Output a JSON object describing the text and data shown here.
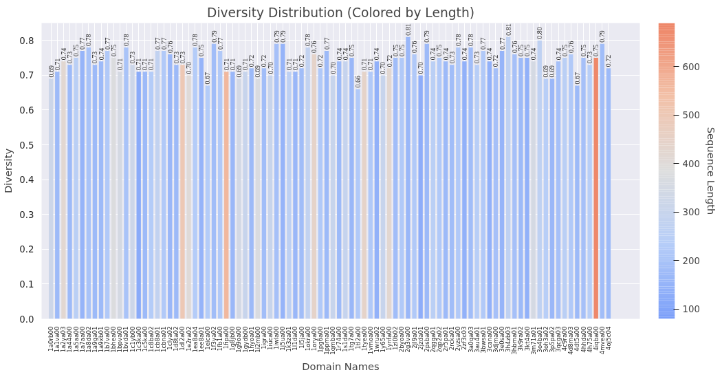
{
  "chart_data": {
    "type": "bar",
    "title": "Diversity Distribution (Colored by Length)",
    "xlabel": "Domain Names",
    "ylabel": "Diversity",
    "clabel": "Sequence Length",
    "categories": [
      "1a0rb00",
      "1a1va00",
      "1a2ya03",
      "1a44a00",
      "1a5aa00",
      "1a7aa00",
      "1a8da02",
      "1a9ga01",
      "1a9xb01",
      "1b7va00",
      "1bhea00",
      "1bpva00",
      "1bvda01",
      "1c1yb00",
      "1c3ka00",
      "1c5ka00",
      "1c8ba02",
      "1cb8a01",
      "1cbna01",
      "1clya02",
      "1d8ta02",
      "1dl2a00",
      "1e2ra02",
      "1ea8a04",
      "1ee8a01",
      "1eica00",
      "1f3ya02",
      "1fb1a00",
      "1fipa00",
      "1g8jb00",
      "1g9oa00",
      "1gydb00",
      "1hyoa01",
      "1i2mb00",
      "1igra00",
      "1iuca00",
      "1iwla00",
      "1j5ua00",
      "1k3za01",
      "1l1da00",
      "1l5ja00",
      "1okra00",
      "1orya00",
      "1pg6a00",
      "1ppma01",
      "1qmba00",
      "1r74a00",
      "1s1da00",
      "1tg7a00",
      "1tl2a00",
      "1tyea00",
      "1vmoa00",
      "1wrua02",
      "1y65a00",
      "1ynfa00",
      "1zl0b02",
      "2byoa00",
      "2g3va00",
      "2jl9a01",
      "2jzda01",
      "2psba00",
      "2qgga01",
      "2qp2a02",
      "2r5pa01",
      "2rcka01",
      "2yzsa00",
      "2zf3c03",
      "3a0qa03",
      "3au4a01",
      "3bwsa01",
      "3cana00",
      "3djma00",
      "3e0sa00",
      "3h4zb03",
      "3hbma01",
      "3k9ra02",
      "3kt4a00",
      "3m71a01",
      "3o4ba01",
      "3oh3a02",
      "3p5pa02",
      "3qcga03",
      "4c9ra00",
      "4d8ma03",
      "4dt5a00",
      "4hhda00",
      "4h75a00",
      "4iqba00",
      "4mvea00",
      "4oj5c04"
    ],
    "values": [
      0.69,
      0.71,
      0.74,
      0.73,
      0.75,
      0.77,
      0.78,
      0.73,
      0.74,
      0.77,
      0.75,
      0.71,
      0.78,
      0.73,
      0.71,
      0.71,
      0.71,
      0.77,
      0.77,
      0.76,
      0.73,
      0.73,
      0.7,
      0.78,
      0.75,
      0.67,
      0.79,
      0.77,
      0.71,
      0.71,
      0.69,
      0.71,
      0.72,
      0.69,
      0.72,
      0.7,
      0.79,
      0.79,
      0.71,
      0.71,
      0.72,
      0.78,
      0.76,
      0.72,
      0.77,
      0.7,
      0.74,
      0.74,
      0.75,
      0.66,
      0.71,
      0.71,
      0.74,
      0.7,
      0.72,
      0.75,
      0.75,
      0.81,
      0.76,
      0.7,
      0.79,
      0.74,
      0.75,
      0.74,
      0.73,
      0.78,
      0.74,
      0.78,
      0.73,
      0.77,
      0.74,
      0.72,
      0.77,
      0.81,
      0.76,
      0.75,
      0.75,
      0.74,
      0.8,
      0.69,
      0.69,
      0.74,
      0.75,
      0.76,
      0.67,
      0.75,
      0.73,
      0.75,
      0.79,
      0.72
    ],
    "value_labels": [
      "0.69",
      "0.71",
      "0.74",
      "0.73",
      "0.75",
      "0.77",
      "0.78",
      "0.73",
      "0.74",
      "0.77",
      "0.75",
      "0.71",
      "0.78",
      "0.73",
      "0.71",
      "0.71",
      "0.71",
      "0.77",
      "0.77",
      "0.76",
      "0.73",
      "0.73",
      "0.70",
      "0.78",
      "0.75",
      "0.67",
      "0.79",
      "0.77",
      "0.71",
      "0.71",
      "0.69",
      "0.71",
      "0.72",
      "0.69",
      "0.72",
      "0.70",
      "0.79",
      "0.79",
      "0.71",
      "0.71",
      "0.72",
      "0.78",
      "0.76",
      "0.72",
      "0.77",
      "0.70",
      "0.74",
      "0.74",
      "0.75",
      "0.66",
      "0.71",
      "0.71",
      "0.74",
      "0.70",
      "0.72",
      "0.75",
      "0.75",
      "0.81",
      "0.76",
      "0.70",
      "0.79",
      "0.74",
      "0.75",
      "0.74",
      "0.73",
      "0.78",
      "0.74",
      "0.78",
      "0.73",
      "0.77",
      "0.74",
      "0.72",
      "0.77",
      "0.81",
      "0.76",
      "0.75",
      "0.75",
      "0.74",
      "0.80",
      "0.69",
      "0.69",
      "0.74",
      "0.75",
      "0.76",
      "0.67",
      "0.75",
      "0.73",
      "0.75",
      "0.79",
      "0.72"
    ],
    "cvalues": [
      320,
      170,
      420,
      170,
      250,
      150,
      200,
      170,
      170,
      220,
      380,
      350,
      200,
      320,
      120,
      170,
      230,
      280,
      220,
      160,
      170,
      500,
      400,
      230,
      150,
      230,
      180,
      220,
      560,
      160,
      340,
      300,
      170,
      370,
      180,
      300,
      190,
      150,
      260,
      160,
      180,
      280,
      440,
      220,
      170,
      300,
      170,
      290,
      160,
      220,
      440,
      220,
      140,
      300,
      420,
      180,
      220,
      160,
      220,
      130,
      170,
      250,
      220,
      170,
      180,
      220,
      140,
      180,
      240,
      220,
      140,
      190,
      150,
      270,
      190,
      170,
      140,
      350,
      270,
      240,
      160,
      190,
      250,
      220,
      170,
      190,
      240,
      680,
      180,
      170
    ],
    "clim": [
      80,
      690
    ],
    "cticks": [
      100,
      200,
      300,
      400,
      500,
      600
    ],
    "ylim": [
      0,
      0.85
    ],
    "yticks": [
      {
        "value": 0,
        "label": "0.0"
      },
      0.1,
      0.2,
      0.3,
      0.4,
      0.5,
      0.6,
      0.7,
      0.8
    ],
    "grid": true
  }
}
